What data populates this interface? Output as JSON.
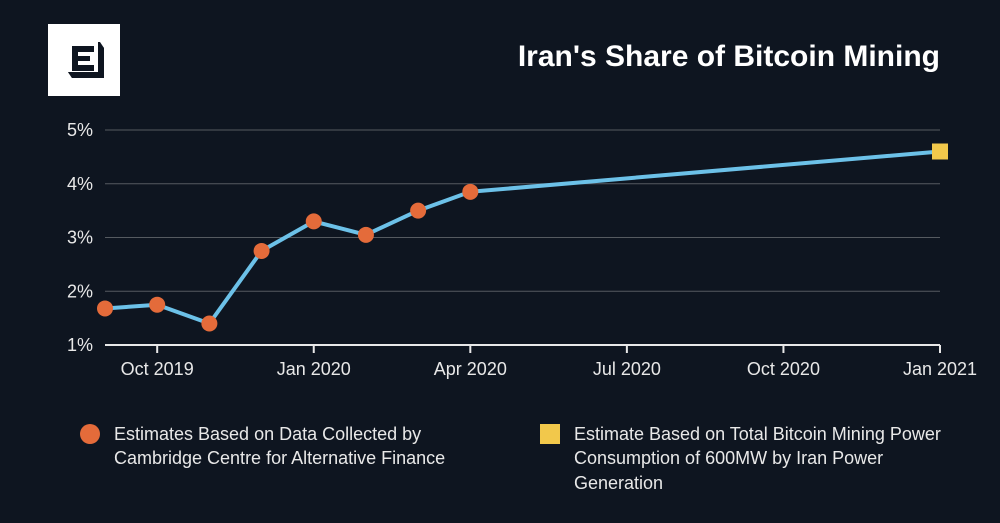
{
  "title": "Iran's Share of Bitcoin Mining",
  "colors": {
    "background": "#0e1520",
    "text": "#e8e8e8",
    "title": "#ffffff",
    "grid": "#555a60",
    "axis": "#e8e8e8",
    "line": "#6cc1e8",
    "marker_circle": "#e46b3a",
    "marker_square": "#f2c84b",
    "logo_bg": "#ffffff",
    "logo_fg": "#0e1520"
  },
  "chart": {
    "type": "line",
    "ylim": [
      1,
      5
    ],
    "ytick_step": 1,
    "ytick_format": "{v}%",
    "y_label_fontsize": 18,
    "x_label_fontsize": 18,
    "line_width": 4,
    "marker_radius": 8,
    "square_marker_size": 16,
    "x_axis": {
      "domain_start": "2019-09",
      "domain_end": "2021-01",
      "ticks": [
        {
          "pos": "2019-10",
          "label": "Oct 2019"
        },
        {
          "pos": "2020-01",
          "label": "Jan 2020"
        },
        {
          "pos": "2020-04",
          "label": "Apr 2020"
        },
        {
          "pos": "2020-07",
          "label": "Jul 2020"
        },
        {
          "pos": "2020-10",
          "label": "Oct 2020"
        },
        {
          "pos": "2021-01",
          "label": "Jan 2021"
        }
      ]
    },
    "series": [
      {
        "name": "cambridge",
        "marker": "circle",
        "marker_color": "#e46b3a",
        "points": [
          {
            "x": "2019-09",
            "y": 1.68
          },
          {
            "x": "2019-10",
            "y": 1.75
          },
          {
            "x": "2019-11",
            "y": 1.4
          },
          {
            "x": "2019-12",
            "y": 2.75
          },
          {
            "x": "2020-01",
            "y": 3.3
          },
          {
            "x": "2020-02",
            "y": 3.05
          },
          {
            "x": "2020-03",
            "y": 3.5
          },
          {
            "x": "2020-04",
            "y": 3.85
          }
        ]
      },
      {
        "name": "iran-power",
        "marker": "square",
        "marker_color": "#f2c84b",
        "points": [
          {
            "x": "2021-01",
            "y": 4.6
          }
        ]
      }
    ]
  },
  "legend": {
    "items": [
      {
        "shape": "circle",
        "color": "#e46b3a",
        "label": "Estimates Based on Data Collected by Cambridge Centre for Alternative Finance"
      },
      {
        "shape": "square",
        "color": "#f2c84b",
        "label": "Estimate Based on Total Bitcoin Mining Power Consumption of 600MW by Iran Power Generation"
      }
    ]
  }
}
